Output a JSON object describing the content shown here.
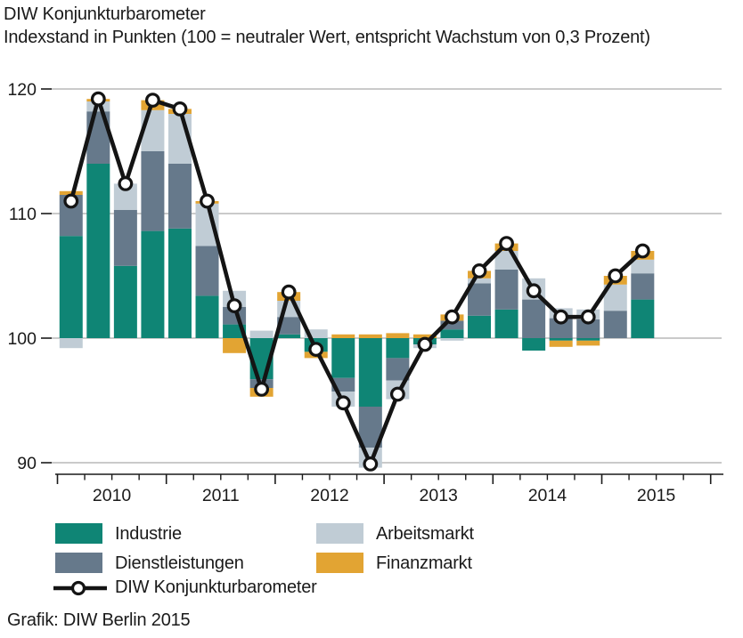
{
  "header": {
    "title": "DIW Konjunkturbarometer",
    "subtitle": "Indexstand in Punkten (100 = neutraler Wert, entspricht Wachstum von 0,3 Prozent)"
  },
  "footer": {
    "credit": "Grafik: DIW Berlin 2015"
  },
  "legend": {
    "items": [
      {
        "label": "Industrie",
        "series": "Industrie"
      },
      {
        "label": "Dienstleistungen",
        "series": "Dienstleistungen"
      },
      {
        "label": "Arbeitsmarkt",
        "series": "Arbeitsmarkt"
      },
      {
        "label": "Finanzmarkt",
        "series": "Finanzmarkt"
      }
    ],
    "line_item": {
      "label": "DIW Konjunkturbarometer"
    }
  },
  "chart_data": {
    "type": "bar",
    "stacked": true,
    "baseline": 100,
    "title": "DIW Konjunkturbarometer",
    "subtitle": "Indexstand in Punkten (100 = neutraler Wert, entspricht Wachstum von 0,3 Prozent)",
    "ylabel": "Indexstand in Punkten",
    "ylim": [
      88.5,
      121.5
    ],
    "yticks": [
      120,
      110,
      100,
      90
    ],
    "grid": true,
    "x_year_labels": [
      "2010",
      "2011",
      "2012",
      "2013",
      "2014",
      "2015"
    ],
    "categories": [
      "2010Q1",
      "2010Q2",
      "2010Q3",
      "2010Q4",
      "2011Q1",
      "2011Q2",
      "2011Q3",
      "2011Q4",
      "2012Q1",
      "2012Q2",
      "2012Q3",
      "2012Q4",
      "2013Q1",
      "2013Q2",
      "2013Q3",
      "2013Q4",
      "2014Q1",
      "2014Q2",
      "2014Q3",
      "2014Q4",
      "2015Q1",
      "2015Q2"
    ],
    "series": [
      {
        "name": "Industrie",
        "color": "#0F8575",
        "values": [
          8.2,
          14.0,
          5.8,
          8.6,
          8.8,
          3.4,
          1.1,
          -3.3,
          0.3,
          -1.1,
          -3.2,
          -5.5,
          -1.6,
          -0.5,
          0.7,
          1.8,
          2.3,
          -1.0,
          -0.2,
          -0.2,
          0.0,
          3.1
        ]
      },
      {
        "name": "Dienstleistungen",
        "color": "#66798B",
        "values": [
          3.3,
          4.2,
          4.5,
          6.4,
          5.2,
          4.0,
          1.4,
          -0.7,
          1.4,
          0.0,
          -1.1,
          -3.3,
          -1.8,
          0.0,
          0.7,
          2.6,
          3.2,
          3.1,
          1.6,
          1.5,
          2.2,
          2.1
        ]
      },
      {
        "name": "Arbeitsmarkt",
        "color": "#C0CCD5",
        "values": [
          -0.8,
          0.8,
          2.1,
          3.3,
          4.0,
          3.4,
          1.3,
          0.6,
          1.3,
          0.7,
          -1.2,
          -1.6,
          -1.5,
          -0.3,
          -0.2,
          0.4,
          1.5,
          1.7,
          0.8,
          0.8,
          2.1,
          1.1
        ]
      },
      {
        "name": "Finanzmarkt",
        "color": "#E2A433",
        "values": [
          0.3,
          0.2,
          0.0,
          0.8,
          0.4,
          0.2,
          -1.2,
          -0.7,
          0.7,
          -0.5,
          0.3,
          0.3,
          0.4,
          0.3,
          0.5,
          0.6,
          0.6,
          0.0,
          -0.5,
          -0.4,
          0.7,
          0.7
        ]
      }
    ],
    "line_series": {
      "name": "DIW Konjunkturbarometer",
      "color": "#141414",
      "marker": "open-circle",
      "values": [
        111.0,
        119.2,
        112.4,
        119.1,
        118.4,
        111.0,
        102.6,
        95.9,
        103.7,
        99.1,
        94.8,
        89.9,
        95.5,
        99.5,
        101.7,
        105.4,
        107.6,
        103.8,
        101.7,
        101.7,
        105.0,
        107.0
      ]
    },
    "legend_position": "bottom"
  }
}
